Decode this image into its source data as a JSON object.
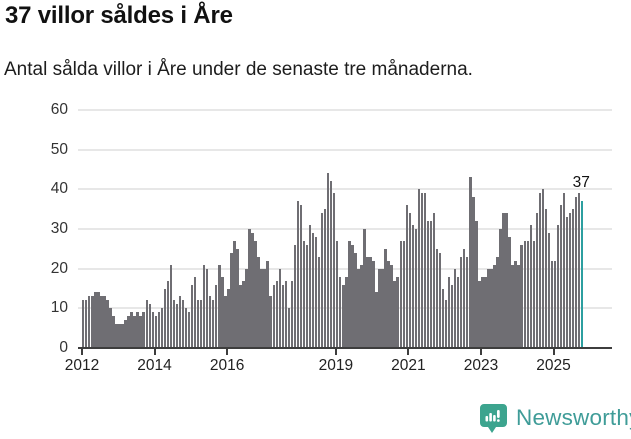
{
  "header": {
    "title": "37 villor såldes i Åre",
    "subtitle": "Antal sålda villor i Åre under de senaste tre månaderna."
  },
  "chart_data": {
    "type": "bar",
    "title": "37 villor såldes i Åre",
    "subtitle": "Antal sålda villor i Åre under de senaste tre månaderna.",
    "unit": "sålda villor (rullande tre månader)",
    "frequency": "monthly",
    "start": "2012-01",
    "end": "2025-10",
    "values": [
      12,
      12,
      13,
      13,
      14,
      14,
      13,
      13,
      12,
      10,
      8,
      6,
      6,
      6,
      7,
      8,
      9,
      8,
      9,
      8,
      9,
      12,
      11,
      9,
      8,
      9,
      10,
      15,
      17,
      21,
      12,
      11,
      13,
      12,
      10,
      9,
      16,
      18,
      12,
      12,
      21,
      20,
      13,
      12,
      16,
      21,
      18,
      13,
      15,
      24,
      27,
      25,
      16,
      17,
      20,
      30,
      29,
      27,
      23,
      20,
      20,
      22,
      13,
      16,
      17,
      20,
      16,
      17,
      10,
      17,
      26,
      37,
      36,
      27,
      26,
      31,
      29,
      28,
      23,
      34,
      35,
      44,
      42,
      39,
      27,
      18,
      16,
      18,
      27,
      26,
      24,
      20,
      21,
      30,
      23,
      23,
      22,
      14,
      20,
      20,
      25,
      22,
      21,
      17,
      18,
      27,
      27,
      36,
      34,
      31,
      30,
      40,
      39,
      39,
      32,
      32,
      34,
      25,
      24,
      15,
      12,
      18,
      16,
      20,
      18,
      23,
      25,
      23,
      43,
      38,
      32,
      17,
      18,
      18,
      20,
      20,
      21,
      23,
      30,
      34,
      34,
      28,
      21,
      22,
      21,
      26,
      27,
      27,
      31,
      27,
      34,
      39,
      40,
      35,
      29,
      22,
      22,
      31,
      36,
      39,
      33,
      34,
      35,
      38,
      39,
      37
    ],
    "highlight_last_value": 37,
    "annotation": "37",
    "ylim": [
      0,
      60
    ],
    "yticks": [
      "0",
      "10",
      "20",
      "30",
      "40",
      "50",
      "60"
    ],
    "xticks": [
      {
        "year": 2012,
        "label": "2012"
      },
      {
        "year": 2014,
        "label": "2014"
      },
      {
        "year": 2016,
        "label": "2016"
      },
      {
        "year": 2019,
        "label": "2019"
      },
      {
        "year": 2021,
        "label": "2021"
      },
      {
        "year": 2023,
        "label": "2023"
      },
      {
        "year": 2025,
        "label": "2025"
      }
    ],
    "grid": true,
    "legend": "none",
    "colors": {
      "bar": "#6f6e73",
      "highlight": "#2c9fa0",
      "axis": "#3d3d3d",
      "gridline": "#e7e7e7"
    }
  },
  "footer": {
    "brand": "Newsworthy",
    "brand_color": "#3f9c98",
    "icon_color": "#3ca48e"
  }
}
